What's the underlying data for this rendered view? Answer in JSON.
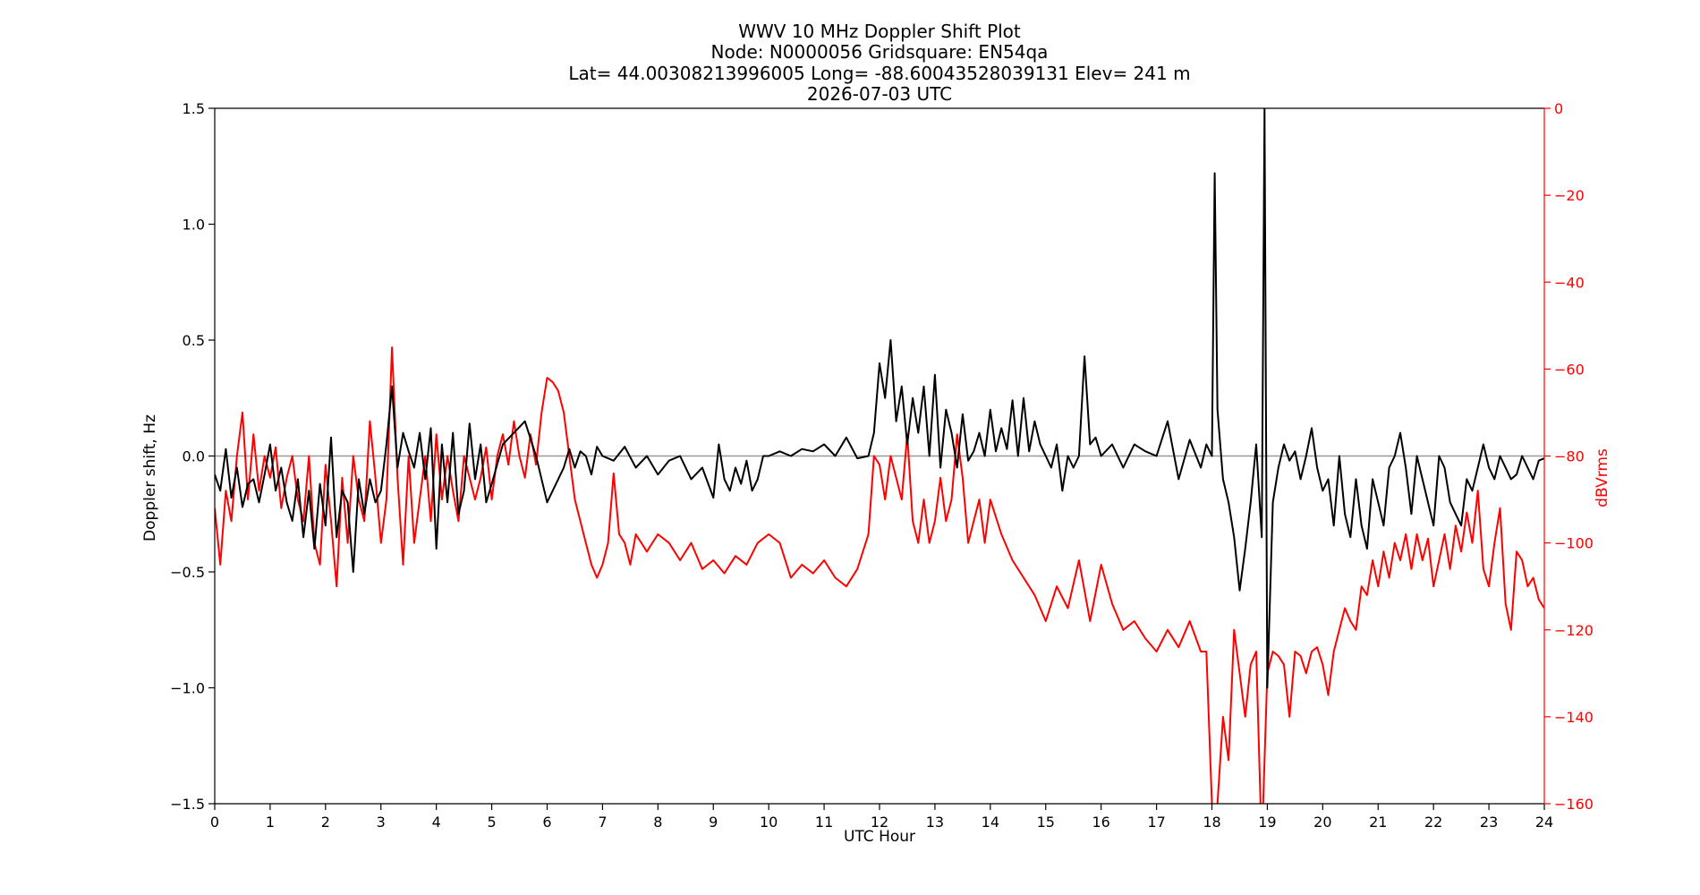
{
  "chart_data": {
    "type": "line",
    "title": [
      "WWV 10 MHz Doppler Shift Plot",
      "Node:  N0000056     Gridsquare:  EN54qa",
      "Lat= 44.00308213996005    Long= -88.60043528039131    Elev= 241 m",
      "2026-07-03  UTC"
    ],
    "xlabel": "UTC Hour",
    "ylabel": "Doppler shift, Hz",
    "ylabel_right": "dBVrms",
    "xlim": [
      0,
      24
    ],
    "ylim": [
      -1.5,
      1.5
    ],
    "ylim_right": [
      -160,
      0
    ],
    "x_ticks": [
      "0",
      "1",
      "2",
      "3",
      "4",
      "5",
      "6",
      "7",
      "8",
      "9",
      "10",
      "11",
      "12",
      "13",
      "14",
      "15",
      "16",
      "17",
      "18",
      "19",
      "20",
      "21",
      "22",
      "23",
      "24"
    ],
    "y_ticks": [
      "1.5",
      "1.0",
      "0.5",
      "0.0",
      "−0.5",
      "−1.0",
      "−1.5"
    ],
    "y_ticks_right": [
      "0",
      "−20",
      "−40",
      "−60",
      "−80",
      "−100",
      "−120",
      "−140",
      "−160"
    ],
    "zero_line": 0.0,
    "grid": false,
    "colors": {
      "doppler": "#000000",
      "power": "#ff0000",
      "right_axis": "#ff0000",
      "zero_line": "#999999"
    },
    "series": [
      {
        "axis": "left",
        "x": [
          0.0,
          0.1,
          0.2,
          0.3,
          0.4,
          0.5,
          0.6,
          0.7,
          0.8,
          0.9,
          1.0,
          1.1,
          1.2,
          1.3,
          1.4,
          1.5,
          1.6,
          1.7,
          1.8,
          1.9,
          2.0,
          2.1,
          2.2,
          2.3,
          2.4,
          2.5,
          2.6,
          2.7,
          2.8,
          2.9,
          3.0,
          3.1,
          3.2,
          3.3,
          3.4,
          3.5,
          3.6,
          3.7,
          3.8,
          3.9,
          4.0,
          4.1,
          4.2,
          4.3,
          4.4,
          4.5,
          4.6,
          4.7,
          4.8,
          4.9,
          5.0,
          5.2,
          5.4,
          5.6,
          5.8,
          6.0,
          6.1,
          6.2,
          6.3,
          6.4,
          6.5,
          6.6,
          6.7,
          6.8,
          6.9,
          7.0,
          7.2,
          7.4,
          7.6,
          7.8,
          8.0,
          8.2,
          8.4,
          8.6,
          8.8,
          9.0,
          9.1,
          9.2,
          9.3,
          9.4,
          9.5,
          9.6,
          9.7,
          9.8,
          9.9,
          10.0,
          10.2,
          10.4,
          10.6,
          10.8,
          11.0,
          11.2,
          11.4,
          11.6,
          11.8,
          11.9,
          12.0,
          12.1,
          12.2,
          12.3,
          12.4,
          12.5,
          12.6,
          12.7,
          12.8,
          12.9,
          13.0,
          13.1,
          13.2,
          13.3,
          13.4,
          13.5,
          13.6,
          13.7,
          13.8,
          13.9,
          14.0,
          14.1,
          14.2,
          14.3,
          14.4,
          14.5,
          14.6,
          14.7,
          14.8,
          14.9,
          15.0,
          15.1,
          15.2,
          15.3,
          15.4,
          15.5,
          15.6,
          15.7,
          15.8,
          15.9,
          16.0,
          16.2,
          16.4,
          16.6,
          16.8,
          17.0,
          17.2,
          17.4,
          17.6,
          17.8,
          17.9,
          18.0,
          18.05,
          18.1,
          18.2,
          18.3,
          18.4,
          18.5,
          18.6,
          18.7,
          18.8,
          18.9,
          18.95,
          19.0,
          19.05,
          19.1,
          19.2,
          19.3,
          19.4,
          19.5,
          19.6,
          19.7,
          19.8,
          19.9,
          20.0,
          20.1,
          20.2,
          20.3,
          20.4,
          20.5,
          20.6,
          20.7,
          20.8,
          20.9,
          21.0,
          21.1,
          21.2,
          21.3,
          21.4,
          21.5,
          21.6,
          21.7,
          21.8,
          21.9,
          22.0,
          22.1,
          22.2,
          22.3,
          22.4,
          22.5,
          22.6,
          22.7,
          22.8,
          22.9,
          23.0,
          23.1,
          23.2,
          23.3,
          23.4,
          23.5,
          23.6,
          23.7,
          23.8,
          23.9,
          24.0
        ],
        "values": [
          -0.08,
          -0.15,
          0.03,
          -0.18,
          -0.05,
          -0.22,
          -0.12,
          -0.1,
          -0.2,
          -0.08,
          0.05,
          -0.15,
          -0.05,
          -0.2,
          -0.28,
          -0.1,
          -0.35,
          -0.15,
          -0.4,
          -0.12,
          -0.3,
          0.08,
          -0.35,
          -0.15,
          -0.2,
          -0.5,
          -0.1,
          -0.25,
          -0.1,
          -0.2,
          -0.15,
          0.05,
          0.3,
          -0.05,
          0.1,
          0.02,
          -0.05,
          0.1,
          -0.1,
          0.12,
          -0.4,
          0.05,
          -0.2,
          0.1,
          -0.25,
          -0.15,
          0.14,
          -0.1,
          0.05,
          -0.2,
          -0.12,
          0.05,
          0.1,
          0.15,
          0.0,
          -0.2,
          -0.15,
          -0.1,
          -0.05,
          0.03,
          -0.05,
          0.02,
          0.0,
          -0.08,
          0.04,
          0.0,
          -0.02,
          0.04,
          -0.05,
          0.0,
          -0.08,
          -0.02,
          0.0,
          -0.1,
          -0.05,
          -0.18,
          0.05,
          -0.1,
          -0.15,
          -0.05,
          -0.12,
          -0.02,
          -0.15,
          -0.1,
          0.0,
          0.0,
          0.02,
          0.0,
          0.03,
          0.02,
          0.05,
          0.0,
          0.08,
          -0.01,
          0.0,
          0.1,
          0.4,
          0.25,
          0.5,
          0.15,
          0.3,
          0.05,
          0.25,
          0.1,
          0.3,
          0.0,
          0.35,
          -0.05,
          0.2,
          0.1,
          -0.05,
          0.18,
          -0.02,
          0.02,
          0.1,
          0.0,
          0.2,
          0.02,
          0.12,
          0.03,
          0.24,
          0.0,
          0.25,
          0.02,
          0.15,
          0.05,
          0.0,
          -0.05,
          0.05,
          -0.15,
          0.0,
          -0.05,
          0.0,
          0.43,
          0.05,
          0.08,
          0.0,
          0.05,
          -0.05,
          0.05,
          0.02,
          0.0,
          0.15,
          -0.1,
          0.07,
          -0.05,
          0.05,
          0.0,
          1.22,
          0.2,
          -0.1,
          -0.2,
          -0.35,
          -0.58,
          -0.4,
          -0.2,
          0.05,
          -0.35,
          1.5,
          -1.0,
          -0.6,
          -0.2,
          -0.05,
          0.05,
          -0.02,
          0.02,
          -0.1,
          0.0,
          0.12,
          -0.05,
          -0.15,
          -0.1,
          -0.3,
          0.0,
          -0.25,
          -0.35,
          -0.1,
          -0.3,
          -0.4,
          -0.1,
          -0.2,
          -0.3,
          -0.05,
          0.0,
          0.1,
          -0.05,
          -0.25,
          0.0,
          -0.1,
          -0.2,
          -0.3,
          0.0,
          -0.05,
          -0.2,
          -0.25,
          -0.3,
          -0.1,
          -0.15,
          -0.05,
          0.05,
          -0.05,
          -0.1,
          0.0,
          -0.05,
          -0.1,
          -0.08,
          0.0,
          -0.05,
          -0.1,
          -0.02,
          -0.01
        ]
      },
      {
        "axis": "right",
        "x": [
          0.0,
          0.1,
          0.2,
          0.3,
          0.4,
          0.5,
          0.6,
          0.7,
          0.8,
          0.9,
          1.0,
          1.1,
          1.2,
          1.3,
          1.4,
          1.5,
          1.6,
          1.7,
          1.8,
          1.9,
          2.0,
          2.1,
          2.2,
          2.3,
          2.4,
          2.5,
          2.6,
          2.7,
          2.8,
          2.9,
          3.0,
          3.1,
          3.2,
          3.3,
          3.4,
          3.5,
          3.6,
          3.7,
          3.8,
          3.9,
          4.0,
          4.1,
          4.2,
          4.3,
          4.4,
          4.5,
          4.6,
          4.7,
          4.8,
          4.9,
          5.0,
          5.1,
          5.2,
          5.3,
          5.4,
          5.5,
          5.6,
          5.7,
          5.8,
          5.9,
          6.0,
          6.1,
          6.2,
          6.3,
          6.4,
          6.5,
          6.6,
          6.7,
          6.8,
          6.9,
          7.0,
          7.1,
          7.2,
          7.3,
          7.4,
          7.5,
          7.6,
          7.7,
          7.8,
          7.9,
          8.0,
          8.2,
          8.4,
          8.6,
          8.8,
          9.0,
          9.2,
          9.4,
          9.6,
          9.8,
          10.0,
          10.2,
          10.4,
          10.6,
          10.8,
          11.0,
          11.2,
          11.4,
          11.6,
          11.8,
          11.9,
          12.0,
          12.1,
          12.2,
          12.3,
          12.4,
          12.5,
          12.6,
          12.7,
          12.8,
          12.9,
          13.0,
          13.1,
          13.2,
          13.3,
          13.4,
          13.5,
          13.6,
          13.7,
          13.8,
          13.9,
          14.0,
          14.2,
          14.4,
          14.6,
          14.8,
          15.0,
          15.2,
          15.4,
          15.6,
          15.8,
          16.0,
          16.2,
          16.4,
          16.6,
          16.8,
          17.0,
          17.2,
          17.4,
          17.6,
          17.8,
          17.9,
          18.0,
          18.05,
          18.1,
          18.2,
          18.3,
          18.4,
          18.5,
          18.6,
          18.7,
          18.8,
          18.9,
          19.0,
          19.1,
          19.2,
          19.3,
          19.4,
          19.5,
          19.6,
          19.7,
          19.8,
          19.9,
          20.0,
          20.1,
          20.2,
          20.3,
          20.4,
          20.5,
          20.6,
          20.7,
          20.8,
          20.9,
          21.0,
          21.1,
          21.2,
          21.3,
          21.4,
          21.5,
          21.6,
          21.7,
          21.8,
          21.9,
          22.0,
          22.1,
          22.2,
          22.3,
          22.4,
          22.5,
          22.6,
          22.7,
          22.8,
          22.9,
          23.0,
          23.1,
          23.2,
          23.3,
          23.4,
          23.5,
          23.6,
          23.7,
          23.8,
          23.9,
          24.0
        ],
        "values": [
          -92,
          -105,
          -88,
          -95,
          -80,
          -70,
          -90,
          -75,
          -88,
          -80,
          -85,
          -78,
          -92,
          -85,
          -80,
          -90,
          -95,
          -80,
          -100,
          -105,
          -82,
          -95,
          -110,
          -85,
          -100,
          -80,
          -90,
          -95,
          -72,
          -85,
          -100,
          -90,
          -55,
          -85,
          -105,
          -80,
          -100,
          -90,
          -80,
          -95,
          -75,
          -90,
          -80,
          -88,
          -95,
          -80,
          -85,
          -90,
          -85,
          -78,
          -90,
          -80,
          -75,
          -82,
          -72,
          -80,
          -85,
          -75,
          -82,
          -70,
          -62,
          -63,
          -65,
          -70,
          -80,
          -90,
          -95,
          -100,
          -105,
          -108,
          -105,
          -100,
          -84,
          -98,
          -100,
          -105,
          -98,
          -100,
          -102,
          -100,
          -98,
          -100,
          -104,
          -100,
          -106,
          -104,
          -107,
          -103,
          -105,
          -100,
          -98,
          -100,
          -108,
          -105,
          -107,
          -104,
          -108,
          -110,
          -106,
          -98,
          -80,
          -82,
          -90,
          -80,
          -85,
          -90,
          -75,
          -95,
          -100,
          -90,
          -100,
          -95,
          -85,
          -95,
          -90,
          -75,
          -85,
          -100,
          -95,
          -90,
          -100,
          -90,
          -98,
          -104,
          -108,
          -112,
          -118,
          -110,
          -115,
          -104,
          -118,
          -105,
          -114,
          -120,
          -118,
          -122,
          -125,
          -120,
          -124,
          -118,
          -125,
          -125,
          -160,
          -170,
          -160,
          -140,
          -150,
          -120,
          -130,
          -140,
          -128,
          -125,
          -170,
          -130,
          -125,
          -126,
          -128,
          -140,
          -125,
          -126,
          -130,
          -125,
          -124,
          -128,
          -135,
          -125,
          -120,
          -115,
          -118,
          -120,
          -110,
          -112,
          -104,
          -110,
          -102,
          -108,
          -100,
          -104,
          -98,
          -106,
          -98,
          -104,
          -99,
          -110,
          -104,
          -98,
          -106,
          -96,
          -102,
          -93,
          -100,
          -88,
          -106,
          -110,
          -100,
          -92,
          -114,
          -120,
          -102,
          -104,
          -110,
          -108,
          -113,
          -115
        ]
      }
    ]
  }
}
